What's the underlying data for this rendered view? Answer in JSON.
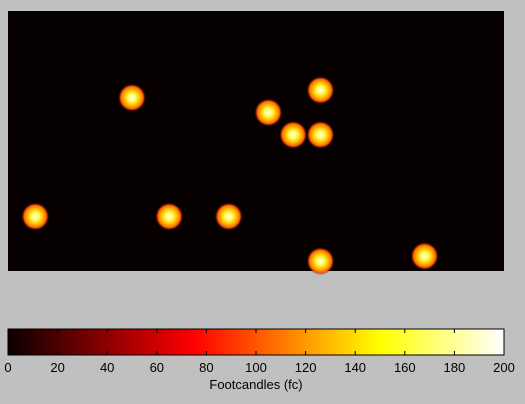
{
  "chart_data": [
    {
      "type": "heatmap",
      "title": "",
      "xlabel": "",
      "ylabel": "",
      "background_color": "#060000",
      "x_range": [
        0,
        200
      ],
      "y_range": [
        0,
        105
      ],
      "axes_visible": false,
      "grid": false,
      "spots": [
        {
          "x": 50,
          "y": 70,
          "value": 200
        },
        {
          "x": 105,
          "y": 64,
          "value": 200
        },
        {
          "x": 126,
          "y": 73,
          "value": 200
        },
        {
          "x": 115,
          "y": 55,
          "value": 200
        },
        {
          "x": 126,
          "y": 55,
          "value": 200
        },
        {
          "x": 11,
          "y": 22,
          "value": 200
        },
        {
          "x": 65,
          "y": 22,
          "value": 200
        },
        {
          "x": 89,
          "y": 22,
          "value": 200
        },
        {
          "x": 126,
          "y": 4,
          "value": 200
        },
        {
          "x": 168,
          "y": 6,
          "value": 200
        }
      ]
    },
    {
      "type": "colorbar",
      "orientation": "horizontal",
      "colormap": "hot",
      "range": [
        0,
        200
      ],
      "ticks": [
        "0",
        "20",
        "40",
        "60",
        "80",
        "100",
        "120",
        "140",
        "160",
        "180",
        "200"
      ],
      "xlabel": "Footcandles (fc)"
    }
  ]
}
